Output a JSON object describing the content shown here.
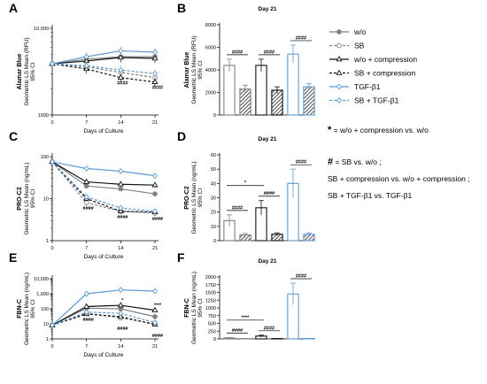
{
  "colors": {
    "black": "#111111",
    "gray": "#808080",
    "blue": "#5b9bd5"
  },
  "series_names": [
    "w/o",
    "SB",
    "w/o + compression",
    "SB + compression",
    "TGF-β1",
    "SB + TGF-β1"
  ],
  "legend": {
    "items": [
      {
        "label": "w/o",
        "color": "#808080",
        "dash": false,
        "marker": "filled-circle"
      },
      {
        "label": "SB",
        "color": "#808080",
        "dash": true,
        "marker": "open-circle"
      },
      {
        "label": "w/o + compression",
        "color": "#111111",
        "dash": false,
        "marker": "open-triangle"
      },
      {
        "label": "SB + compression",
        "color": "#111111",
        "dash": true,
        "marker": "open-triangle"
      },
      {
        "label": "TGF-β1",
        "color": "#5b9bd5",
        "dash": false,
        "marker": "open-diamond"
      },
      {
        "label": "SB + TGF-β1",
        "color": "#5b9bd5",
        "dash": true,
        "marker": "open-diamond"
      }
    ],
    "notes": [
      {
        "sym": "*",
        "text": " = w/o + compression vs. w/o"
      },
      {
        "sym": "#",
        "text": " = SB vs. w/o ;"
      },
      {
        "sym": "",
        "text": "SB + compression vs. w/o + compression ;"
      },
      {
        "sym": "",
        "text": "SB + TGF-β1 vs. TGF-β1"
      }
    ]
  },
  "chart_data": [
    {
      "panel": "A",
      "type": "line",
      "title": "",
      "row_label": "Alamar Blue",
      "ylabel": "Geometric LS Mean (RFU)\n95% CI",
      "xlabel": "Days of Culture",
      "x": [
        0,
        7,
        14,
        21
      ],
      "xlim": [
        0,
        21
      ],
      "ylim": [
        1000,
        10000
      ],
      "yscale": "log",
      "yticks": [
        1000,
        10000
      ],
      "ytick_labels": [
        "1000",
        "10,000"
      ],
      "series": [
        {
          "name": "w/o",
          "values": [
            3900,
            4400,
            4700,
            4700
          ]
        },
        {
          "name": "SB",
          "values": [
            3900,
            3600,
            3100,
            2700
          ]
        },
        {
          "name": "w/o + compression",
          "values": [
            3900,
            4200,
            4600,
            4500
          ]
        },
        {
          "name": "SB + compression",
          "values": [
            3900,
            3400,
            2700,
            2400
          ]
        },
        {
          "name": "TGF-β1",
          "values": [
            3900,
            4700,
            5500,
            5300
          ]
        },
        {
          "name": "SB + TGF-β1",
          "values": [
            3900,
            3700,
            3300,
            3000
          ]
        }
      ],
      "annotations": [
        {
          "x": 14,
          "text": "####"
        },
        {
          "x": 21,
          "text": "####"
        }
      ]
    },
    {
      "panel": "B",
      "type": "bar",
      "title": "Day 21",
      "row_label": "Alamar Blue",
      "ylabel": "Geometric LS Mean (RFU)\n95% CI",
      "categories": [
        "w/o",
        "SB",
        "w/o + compression",
        "SB + compression",
        "TGF-β1",
        "SB + TGF-β1"
      ],
      "values": [
        4400,
        2300,
        4400,
        2200,
        5400,
        2500
      ],
      "errors": [
        550,
        350,
        550,
        300,
        800,
        300
      ],
      "ylim": [
        0,
        8000
      ],
      "yticks": [
        0,
        2000,
        4000,
        6000,
        8000
      ],
      "brackets": [
        {
          "from": 0,
          "to": 1,
          "text": "####"
        },
        {
          "from": 2,
          "to": 3,
          "text": "####"
        },
        {
          "from": 4,
          "to": 5,
          "text": "####"
        }
      ]
    },
    {
      "panel": "C",
      "type": "line",
      "title": "",
      "row_label": "PRO-C2",
      "ylabel": "Geometric LS Mean (ng/mL)\n95% CI",
      "xlabel": "Days of Culture",
      "x": [
        0,
        7,
        14,
        21
      ],
      "xlim": [
        0,
        21
      ],
      "ylim": [
        1,
        100
      ],
      "yscale": "log",
      "yticks": [
        1,
        10,
        100
      ],
      "ytick_labels": [
        "1",
        "10",
        "100"
      ],
      "series": [
        {
          "name": "w/o",
          "values": [
            75,
            20,
            17,
            13
          ]
        },
        {
          "name": "SB",
          "values": [
            75,
            8,
            5,
            4.5
          ]
        },
        {
          "name": "w/o + compression",
          "values": [
            75,
            25,
            22,
            21
          ]
        },
        {
          "name": "SB + compression",
          "values": [
            75,
            10,
            5,
            4.8
          ]
        },
        {
          "name": "TGF-β1",
          "values": [
            75,
            52,
            45,
            35
          ]
        },
        {
          "name": "SB + TGF-β1",
          "values": [
            75,
            11,
            6,
            5
          ]
        }
      ],
      "annotations": [
        {
          "x": 7,
          "text": "####"
        },
        {
          "x": 14,
          "text": "####"
        },
        {
          "x": 21,
          "text": "####"
        }
      ]
    },
    {
      "panel": "D",
      "type": "bar",
      "title": "Day 21",
      "row_label": "PRO-C2",
      "ylabel": "Geometric LS Mean (ng/mL)\n95% CI",
      "categories": [
        "w/o",
        "SB",
        "w/o + compression",
        "SB + compression",
        "TGF-β1",
        "SB + TGF-β1"
      ],
      "values": [
        14,
        4,
        23,
        4.5,
        40,
        4.5
      ],
      "errors": [
        4,
        1,
        5,
        1,
        10,
        1
      ],
      "ylim": [
        0,
        60
      ],
      "yticks": [
        0,
        10,
        20,
        30,
        40,
        50,
        60
      ],
      "brackets": [
        {
          "from": 0,
          "to": 1,
          "text": "####"
        },
        {
          "from": 0,
          "to": 2,
          "text": "*"
        },
        {
          "from": 2,
          "to": 3,
          "text": "####"
        },
        {
          "from": 4,
          "to": 5,
          "text": "####"
        }
      ]
    },
    {
      "panel": "E",
      "type": "line",
      "title": "",
      "row_label": "FBN-C",
      "ylabel": "Geometric LS Mean (ng/mL)\n95% CI",
      "xlabel": "Days of Culture",
      "x": [
        0,
        7,
        14,
        21
      ],
      "xlim": [
        0,
        21
      ],
      "ylim": [
        1,
        10000
      ],
      "yscale": "log",
      "yticks": [
        1,
        10,
        100,
        1000,
        10000
      ],
      "ytick_labels": [
        "1",
        "10",
        "100",
        "1,000",
        "10,000"
      ],
      "series": [
        {
          "name": "w/o",
          "values": [
            8,
            110,
            100,
            30
          ]
        },
        {
          "name": "SB",
          "values": [
            8,
            50,
            25,
            10
          ]
        },
        {
          "name": "w/o + compression",
          "values": [
            8,
            140,
            170,
            80
          ]
        },
        {
          "name": "SB + compression",
          "values": [
            8,
            45,
            30,
            9
          ]
        },
        {
          "name": "TGF-β1",
          "values": [
            8,
            1000,
            1800,
            1500
          ]
        },
        {
          "name": "SB + TGF-β1",
          "values": [
            8,
            60,
            50,
            12
          ]
        }
      ],
      "annotations": [
        {
          "x": 7,
          "text": "####"
        },
        {
          "x": 14,
          "text": "*"
        },
        {
          "x": 14,
          "text": "####"
        },
        {
          "x": 21,
          "text": "****"
        },
        {
          "x": 21,
          "text": "####"
        }
      ]
    },
    {
      "panel": "F",
      "type": "bar",
      "title": "Day 21",
      "row_label": "FBN-C",
      "ylabel": "Geometric LS Mean (ng/mL)\n95% CI",
      "categories": [
        "w/o",
        "SB",
        "w/o + compression",
        "SB + compression",
        "TGF-β1",
        "SB + TGF-β1"
      ],
      "values": [
        30,
        8,
        90,
        10,
        1450,
        10
      ],
      "errors": [
        10,
        3,
        30,
        3,
        350,
        3
      ],
      "ylim": [
        0,
        2000
      ],
      "yticks": [
        0,
        250,
        500,
        750,
        1000,
        1250,
        1500,
        1750,
        2000
      ],
      "brackets": [
        {
          "from": 0,
          "to": 1,
          "text": "####"
        },
        {
          "from": 0,
          "to": 2,
          "text": "****"
        },
        {
          "from": 2,
          "to": 3,
          "text": "####"
        },
        {
          "from": 4,
          "to": 5,
          "text": "####"
        }
      ]
    }
  ]
}
